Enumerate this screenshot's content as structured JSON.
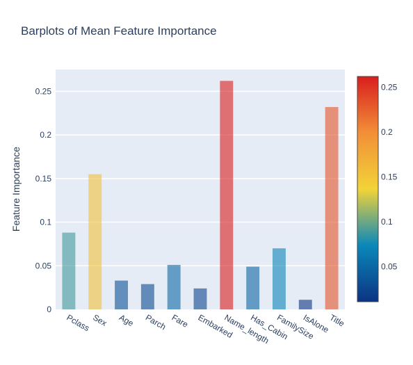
{
  "chart_data": {
    "type": "bar",
    "title": "Barplots of Mean Feature Importance",
    "xlabel": "",
    "ylabel": "Feature Importance",
    "categories": [
      "Pclass",
      "Sex",
      "Age",
      "Parch",
      "Fare",
      "Embarked",
      "Name_length",
      "Has_Cabin",
      "FamilySize",
      "IsAlone",
      "Title"
    ],
    "values": [
      0.088,
      0.155,
      0.033,
      0.029,
      0.051,
      0.024,
      0.262,
      0.049,
      0.07,
      0.011,
      0.232
    ],
    "ylim": [
      0,
      0.275
    ],
    "yticks": [
      {
        "v": 0,
        "label": "0"
      },
      {
        "v": 0.05,
        "label": "0.05"
      },
      {
        "v": 0.1,
        "label": "0.1"
      },
      {
        "v": 0.15,
        "label": "0.15"
      },
      {
        "v": 0.2,
        "label": "0.2"
      },
      {
        "v": 0.25,
        "label": "0.25"
      }
    ],
    "grid": true,
    "bar_opacity": 0.6,
    "plot_bgcolor": "#e5ecf6",
    "colorscale": "Portland",
    "colorscale_stops": [
      "#0c3383",
      "#0a88ba",
      "#f2d338",
      "#f28f38",
      "#d91e1e"
    ],
    "colorbar": {
      "range": [
        0.011,
        0.262
      ],
      "ticks": [
        {
          "v": 0.05,
          "label": "0.05"
        },
        {
          "v": 0.1,
          "label": "0.1"
        },
        {
          "v": 0.15,
          "label": "0.15"
        },
        {
          "v": 0.2,
          "label": "0.2"
        },
        {
          "v": 0.25,
          "label": "0.25"
        }
      ]
    }
  }
}
